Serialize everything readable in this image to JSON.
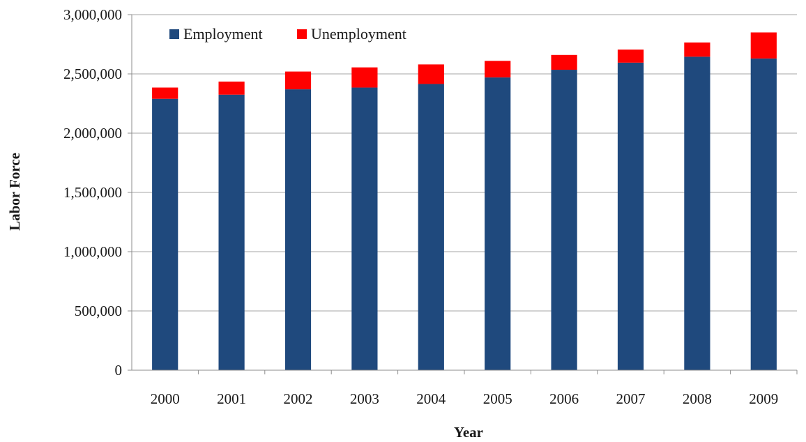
{
  "chart_data": {
    "type": "bar",
    "stacked": true,
    "title": "",
    "xlabel": "Year",
    "ylabel": "Labor Force",
    "categories": [
      "2000",
      "2001",
      "2002",
      "2003",
      "2004",
      "2005",
      "2006",
      "2007",
      "2008",
      "2009"
    ],
    "series": [
      {
        "name": "Employment",
        "color": "#1F497D",
        "values": [
          2290000,
          2325000,
          2370000,
          2385000,
          2415000,
          2470000,
          2535000,
          2595000,
          2645000,
          2630000
        ]
      },
      {
        "name": "Unemployment",
        "color": "#FF0000",
        "values": [
          95000,
          110000,
          150000,
          170000,
          165000,
          140000,
          125000,
          110000,
          120000,
          220000
        ]
      }
    ],
    "ylim": [
      0,
      3000000
    ],
    "yticks": [
      0,
      500000,
      1000000,
      1500000,
      2000000,
      2500000,
      3000000
    ],
    "ytick_labels": [
      "0",
      "500,000",
      "1,000,000",
      "1,500,000",
      "2,000,000",
      "2,500,000",
      "3,000,000"
    ],
    "grid": "horizontal",
    "gridColor": "#a6a6a6",
    "legend": "top-left"
  }
}
